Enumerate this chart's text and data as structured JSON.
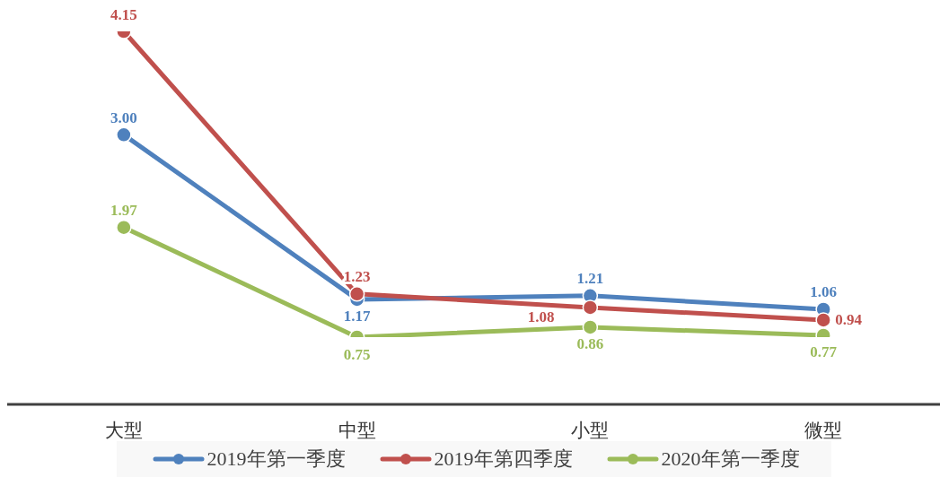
{
  "chart_data": {
    "type": "line",
    "categories": [
      "大型",
      "中型",
      "小型",
      "微型"
    ],
    "series": [
      {
        "name": "2019年第一季度",
        "color": "#4f81bd",
        "values": [
          3.0,
          1.17,
          1.21,
          1.06
        ],
        "value_labels": [
          "3.00",
          "1.17",
          "1.21",
          "1.06"
        ]
      },
      {
        "name": "2019年第四季度",
        "color": "#c0504d",
        "values": [
          4.15,
          1.23,
          1.08,
          0.94
        ],
        "value_labels": [
          "4.15",
          "1.23",
          "1.08",
          "0.94"
        ]
      },
      {
        "name": "2020年第一季度",
        "color": "#9bbb59",
        "values": [
          1.97,
          0.75,
          0.86,
          0.77
        ],
        "value_labels": [
          "1.97",
          "0.75",
          "0.86",
          "0.77"
        ]
      }
    ],
    "tick_labels": "x",
    "legend": "bottom",
    "marker": "circle"
  }
}
